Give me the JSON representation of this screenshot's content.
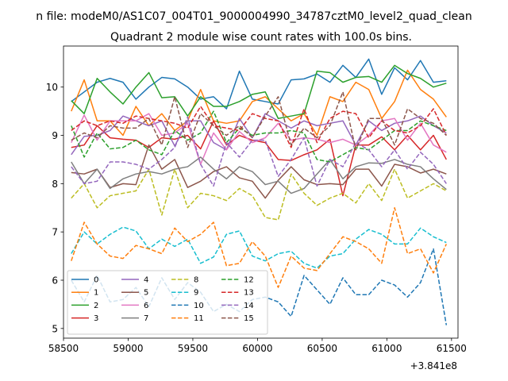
{
  "figure": {
    "suptitle": "n file: modeM0/AS1C07_004T01_9000004990_34787cztM0_level2_quad_clean",
    "offset_text": "+3.841e8"
  },
  "chart_data": {
    "type": "line",
    "title": "Quadrant 2 module wise count rates with 100.0s bins.",
    "xlabel": "",
    "ylabel": "",
    "xlim": [
      58500,
      61550
    ],
    "ylim": [
      4.8,
      10.85
    ],
    "x_ticks": [
      58500,
      59000,
      59500,
      60000,
      60500,
      61000,
      61500
    ],
    "y_ticks": [
      5,
      6,
      7,
      8,
      9,
      10
    ],
    "grid": false,
    "legend": {
      "placement": "lower-left",
      "columns": 4
    },
    "x": [
      58560,
      58660,
      58760,
      58860,
      58960,
      59060,
      59160,
      59260,
      59360,
      59460,
      59560,
      59660,
      59760,
      59860,
      59960,
      60060,
      60160,
      60260,
      60360,
      60460,
      60560,
      60660,
      60760,
      60860,
      60960,
      61060,
      61160,
      61260,
      61360,
      61460
    ],
    "series": [
      {
        "name": "0",
        "style": "solid",
        "color": "#1f77b4",
        "values": [
          9.7,
          9.9,
          10.1,
          10.18,
          10.1,
          9.75,
          10.0,
          10.2,
          10.17,
          10.0,
          9.75,
          9.8,
          9.55,
          10.33,
          9.75,
          9.7,
          9.65,
          10.15,
          10.17,
          10.27,
          10.1,
          10.45,
          10.2,
          10.58,
          9.85,
          10.4,
          10.15,
          10.55,
          10.1,
          10.13
        ]
      },
      {
        "name": "1",
        "style": "solid",
        "color": "#ff7f0e",
        "values": [
          9.5,
          10.15,
          9.3,
          9.3,
          9.0,
          9.6,
          9.2,
          9.45,
          9.1,
          9.3,
          9.95,
          9.3,
          9.25,
          9.3,
          9.7,
          9.8,
          9.55,
          9.3,
          9.45,
          9.0,
          9.8,
          9.7,
          10.1,
          9.95,
          9.35,
          9.7,
          10.35,
          9.95,
          9.75,
          9.38
        ]
      },
      {
        "name": "2",
        "style": "solid",
        "color": "#2ca02c",
        "values": [
          9.72,
          9.45,
          10.18,
          9.9,
          9.65,
          10.0,
          10.3,
          9.78,
          9.8,
          9.4,
          9.8,
          9.6,
          9.6,
          9.7,
          9.85,
          9.9,
          9.35,
          9.4,
          9.45,
          10.33,
          10.3,
          10.1,
          10.2,
          10.22,
          10.1,
          10.45,
          10.28,
          10.18,
          10.0,
          10.08
        ]
      },
      {
        "name": "3",
        "style": "solid",
        "color": "#d62728",
        "values": [
          8.75,
          8.8,
          9.2,
          8.95,
          8.92,
          8.9,
          8.75,
          8.95,
          8.92,
          9.0,
          8.72,
          9.3,
          8.8,
          9.0,
          8.9,
          8.85,
          8.5,
          8.48,
          8.6,
          8.7,
          8.92,
          7.75,
          8.8,
          8.8,
          8.97,
          8.7,
          9.0,
          8.7,
          9.0,
          8.5
        ]
      },
      {
        "name": "4",
        "style": "solid",
        "color": "#9467bd",
        "values": [
          8.6,
          8.98,
          9.0,
          9.1,
          9.4,
          9.3,
          9.2,
          9.3,
          8.78,
          9.3,
          9.3,
          8.85,
          8.7,
          9.35,
          8.95,
          9.45,
          9.3,
          9.15,
          9.3,
          9.2,
          9.25,
          9.3,
          8.8,
          9.3,
          9.1,
          9.25,
          9.3,
          9.4,
          9.2,
          9.05
        ]
      },
      {
        "name": "5",
        "style": "solid",
        "color": "#8c564b",
        "values": [
          8.23,
          8.2,
          8.3,
          7.92,
          8.0,
          7.98,
          8.8,
          8.3,
          8.5,
          7.92,
          8.05,
          8.25,
          8.35,
          8.12,
          8.05,
          7.7,
          8.07,
          8.35,
          8.08,
          7.98,
          8.0,
          7.98,
          8.3,
          8.3,
          7.95,
          8.4,
          8.35,
          8.22,
          8.3,
          8.2
        ]
      },
      {
        "name": "6",
        "style": "solid",
        "color": "#e377c2",
        "values": [
          8.85,
          9.42,
          8.9,
          9.3,
          9.3,
          9.3,
          9.45,
          9.0,
          9.05,
          9.25,
          8.4,
          9.05,
          8.7,
          9.08,
          8.85,
          8.95,
          9.25,
          8.9,
          8.95,
          8.92,
          8.85,
          8.92,
          8.8,
          9.0,
          9.3,
          9.35,
          8.9,
          9.25,
          8.8,
          8.65
        ]
      },
      {
        "name": "7",
        "style": "solid",
        "color": "#7f7f7f",
        "values": [
          8.45,
          8.0,
          8.3,
          7.9,
          8.1,
          8.2,
          8.25,
          8.2,
          8.3,
          8.35,
          8.55,
          8.3,
          8.1,
          8.35,
          8.25,
          7.98,
          8.05,
          7.8,
          7.9,
          8.2,
          8.5,
          8.1,
          8.35,
          8.43,
          8.42,
          8.5,
          8.4,
          8.35,
          8.1,
          7.88
        ]
      },
      {
        "name": "8",
        "style": "dashed",
        "color": "#bcbd22",
        "values": [
          7.7,
          8.0,
          7.5,
          7.75,
          7.8,
          7.85,
          8.3,
          7.35,
          8.3,
          7.5,
          7.8,
          7.75,
          7.65,
          7.9,
          7.75,
          7.3,
          7.25,
          8.2,
          7.8,
          7.55,
          7.7,
          7.8,
          7.6,
          8.0,
          7.65,
          8.3,
          7.7,
          7.85,
          8.0,
          7.85
        ]
      },
      {
        "name": "9",
        "style": "dashed",
        "color": "#17becf",
        "values": [
          6.55,
          7.0,
          6.75,
          6.95,
          7.1,
          7.02,
          6.65,
          6.85,
          6.7,
          6.85,
          6.35,
          6.48,
          6.95,
          7.02,
          6.5,
          6.4,
          6.55,
          6.6,
          6.35,
          6.25,
          6.5,
          6.55,
          6.85,
          7.05,
          6.95,
          6.75,
          6.75,
          7.08,
          6.9,
          6.78
        ]
      },
      {
        "name": "10",
        "style": "dashed",
        "color": "#1f77b4",
        "values": [
          6.0,
          5.55,
          6.1,
          5.55,
          5.6,
          5.85,
          5.45,
          6.05,
          5.6,
          5.95,
          5.75,
          5.35,
          5.5,
          5.35,
          5.6,
          5.65,
          5.55,
          5.25,
          6.1,
          5.8,
          5.5,
          6.05,
          5.7,
          5.7,
          6.0,
          5.9,
          5.65,
          5.95,
          6.65,
          5.07
        ]
      },
      {
        "name": "11",
        "style": "dashed",
        "color": "#ff7f0e",
        "values": [
          6.4,
          7.2,
          6.75,
          6.5,
          6.45,
          6.72,
          6.65,
          6.55,
          7.08,
          6.8,
          6.95,
          7.2,
          6.3,
          6.35,
          6.8,
          6.5,
          5.85,
          6.5,
          6.25,
          6.2,
          6.55,
          6.9,
          6.8,
          6.65,
          6.35,
          7.5,
          6.55,
          6.65,
          6.15,
          6.75
        ]
      },
      {
        "name": "12",
        "style": "dashed",
        "color": "#2ca02c",
        "values": [
          9.2,
          8.55,
          9.05,
          8.72,
          8.75,
          8.9,
          8.7,
          8.6,
          9.1,
          8.9,
          9.05,
          9.5,
          8.85,
          9.15,
          9.0,
          9.05,
          9.05,
          9.1,
          9.05,
          8.5,
          8.45,
          8.6,
          8.75,
          8.7,
          8.9,
          9.1,
          9.1,
          9.3,
          9.2,
          9.1
        ]
      },
      {
        "name": "13",
        "style": "dashed",
        "color": "#d62728",
        "values": [
          9.1,
          9.3,
          9.2,
          9.3,
          9.25,
          9.4,
          9.35,
          9.3,
          9.25,
          9.15,
          9.6,
          9.2,
          9.15,
          9.1,
          9.45,
          9.35,
          9.3,
          8.75,
          9.55,
          8.85,
          9.35,
          9.5,
          9.45,
          8.95,
          9.3,
          9.1,
          9.05,
          9.2,
          9.55,
          9.0
        ]
      },
      {
        "name": "14",
        "style": "dashed",
        "color": "#9467bd",
        "values": [
          8.35,
          8.0,
          8.05,
          8.45,
          8.45,
          8.4,
          8.3,
          8.5,
          8.75,
          9.38,
          8.4,
          7.95,
          8.85,
          8.55,
          8.9,
          8.9,
          8.15,
          8.5,
          8.95,
          7.95,
          8.5,
          8.35,
          8.85,
          8.7,
          8.35,
          8.7,
          8.3,
          8.65,
          8.4,
          8.0
        ]
      },
      {
        "name": "15",
        "style": "dashed",
        "color": "#8c564b",
        "values": [
          8.9,
          9.05,
          8.95,
          9.2,
          9.15,
          9.15,
          9.35,
          8.8,
          9.8,
          8.75,
          9.45,
          9.2,
          9.0,
          9.2,
          8.95,
          9.4,
          9.8,
          8.8,
          9.15,
          8.95,
          9.2,
          9.9,
          8.7,
          9.35,
          9.35,
          8.8,
          9.55,
          9.35,
          9.25,
          9.0
        ]
      }
    ]
  }
}
